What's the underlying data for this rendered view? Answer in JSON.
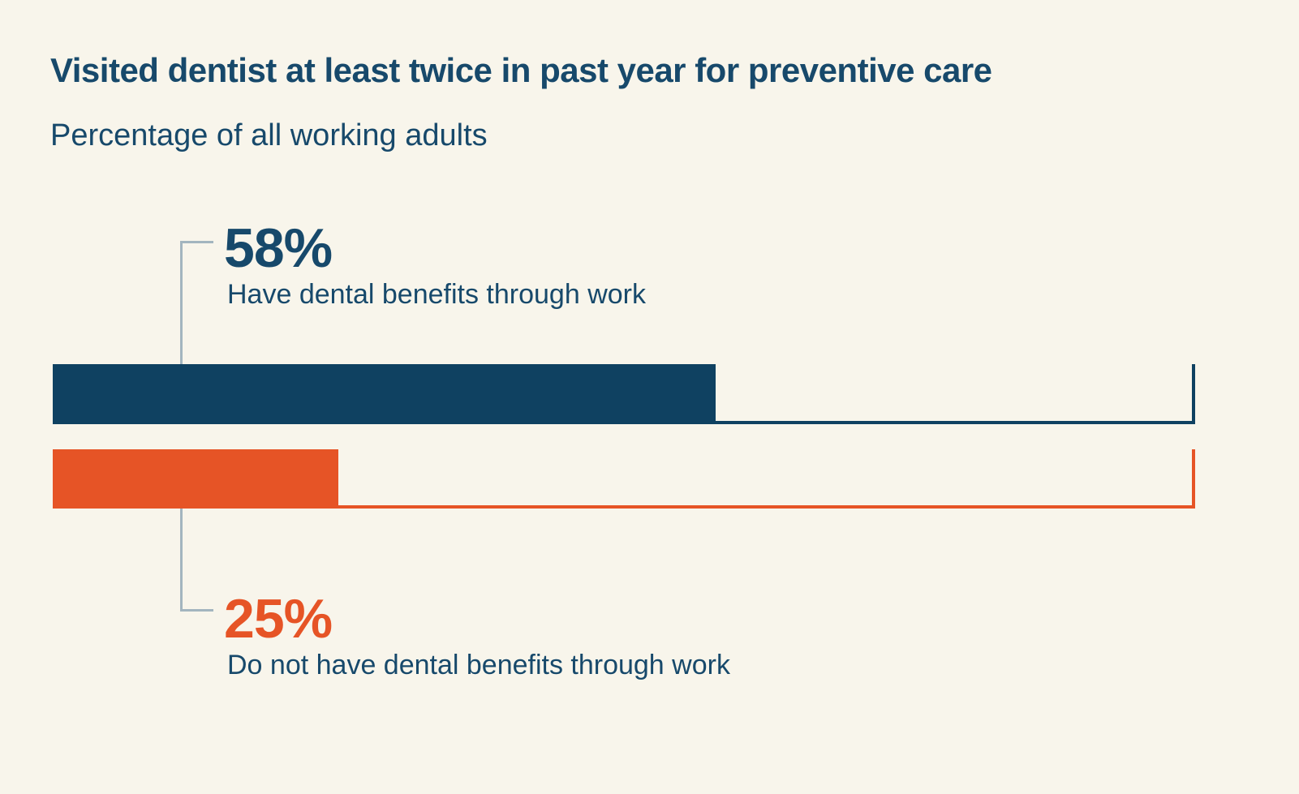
{
  "colors": {
    "background": "#f8f5eb",
    "navy_bar": "#0f4161",
    "orange_bar": "#e65426",
    "text_navy": "#17496b",
    "connector_gray": "#a3b5bf"
  },
  "chart_data": {
    "type": "bar",
    "orientation": "horizontal",
    "title": "Visited dentist at least twice in past year for preventive care",
    "subtitle": "Percentage of all working adults",
    "categories": [
      "Have dental benefits through work",
      "Do not have dental benefits through work"
    ],
    "values": [
      58,
      25
    ],
    "value_labels": [
      "58%",
      "25%"
    ],
    "series_colors": [
      "#0f4161",
      "#e65426"
    ],
    "xlim": [
      0,
      100
    ],
    "grid": false,
    "legend": false,
    "notes": "Each bar has a thin baseline extending to the 100% mark, capped by a vertical end tick in the bar's color; value callouts are linked to bars with thin gray connector lines."
  }
}
